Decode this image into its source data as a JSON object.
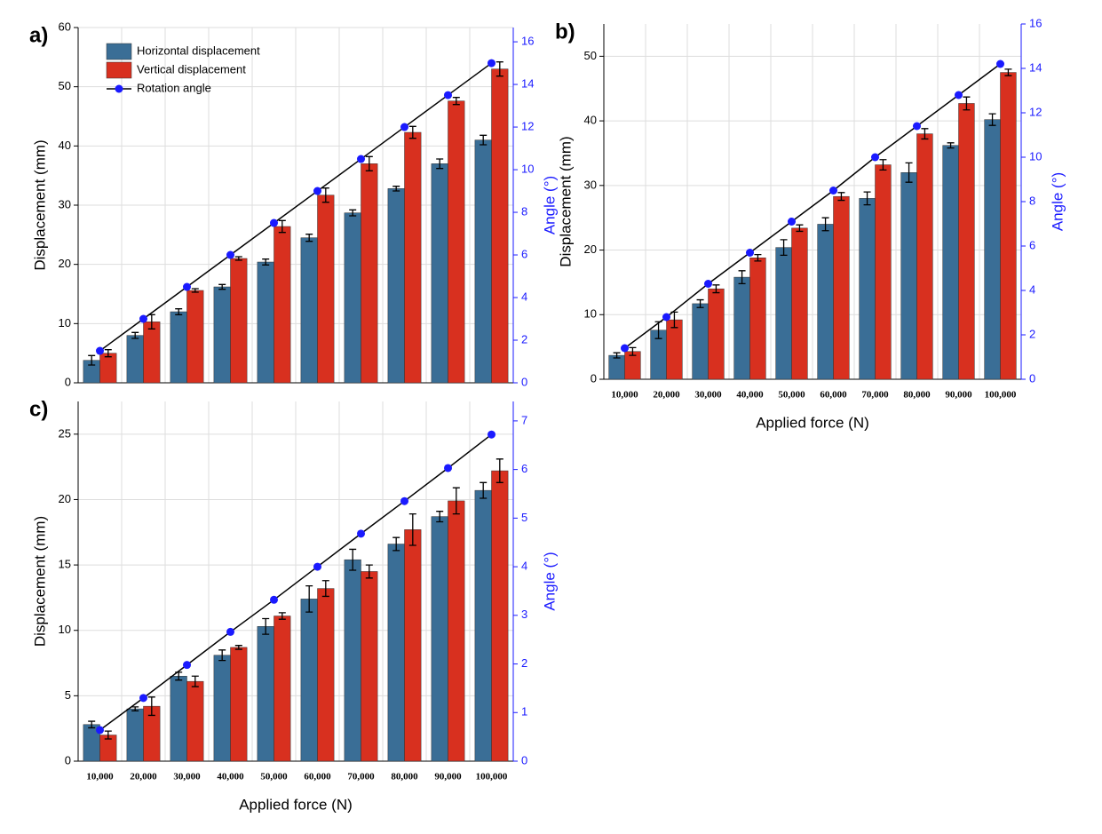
{
  "chart_data": [
    {
      "type": "bar",
      "label": "a)",
      "y_label": "Displacement (mm)",
      "y2_label": "Angle (°)",
      "categories": [
        null,
        null,
        null,
        null,
        null,
        null,
        null,
        null,
        null,
        null
      ],
      "ylim": [
        0,
        60
      ],
      "yticks": [
        0,
        10,
        20,
        30,
        40,
        50,
        60
      ],
      "y2lim": [
        0,
        16.67
      ],
      "y2ticks": [
        0,
        2,
        4,
        6,
        8,
        10,
        12,
        14,
        16
      ],
      "grid": true,
      "legend": "upper left",
      "series": [
        {
          "name": "Horizontal displacement",
          "color": "#3a6e96",
          "values": [
            3.8,
            8.0,
            12.0,
            16.2,
            20.4,
            24.5,
            28.7,
            32.8,
            37.0,
            41.0
          ],
          "errors": [
            0.8,
            0.5,
            0.5,
            0.4,
            0.5,
            0.6,
            0.5,
            0.4,
            0.8,
            0.8
          ]
        },
        {
          "name": "Vertical displacement",
          "color": "#d8301f",
          "values": [
            5.0,
            10.3,
            15.6,
            21.0,
            26.4,
            31.7,
            37.0,
            42.3,
            47.6,
            53.0
          ],
          "errors": [
            0.6,
            1.2,
            0.3,
            0.3,
            1.0,
            1.2,
            1.2,
            1.0,
            0.6,
            1.2
          ]
        },
        {
          "name": "Rotation angle",
          "type": "line",
          "axis": "y2",
          "color": "#1a1aff",
          "values": [
            1.5,
            3.0,
            4.5,
            6.0,
            7.5,
            9.0,
            10.5,
            12.0,
            13.5,
            15.0
          ]
        }
      ]
    },
    {
      "type": "bar",
      "label": "b)",
      "y_label": "Displacement (mm)",
      "y2_label": "Angle (°)",
      "x_label": "Applied force (N)",
      "categories": [
        "10,000",
        "20,000",
        "30,000",
        "40,000",
        "50,000",
        "60,000",
        "70,000",
        "80,000",
        "90,000",
        "100,000"
      ],
      "ylim": [
        0,
        55
      ],
      "yticks": [
        0,
        10,
        20,
        30,
        40,
        50
      ],
      "y2lim": [
        0,
        16
      ],
      "y2ticks": [
        0,
        2,
        4,
        6,
        8,
        10,
        12,
        14,
        16
      ],
      "grid": true,
      "legend": false,
      "series": [
        {
          "color": "#3a6e96",
          "values": [
            3.7,
            7.6,
            11.7,
            15.8,
            20.4,
            24.0,
            28.0,
            32.0,
            36.2,
            40.2
          ],
          "errors": [
            0.4,
            1.3,
            0.6,
            1.0,
            1.2,
            1.0,
            1.0,
            1.5,
            0.4,
            0.9
          ]
        },
        {
          "color": "#d8301f",
          "values": [
            4.3,
            9.2,
            14.0,
            18.8,
            23.4,
            28.3,
            33.2,
            38.0,
            42.7,
            47.5
          ],
          "errors": [
            0.6,
            1.2,
            0.6,
            0.5,
            0.5,
            0.6,
            0.8,
            0.8,
            1.0,
            0.5
          ]
        },
        {
          "type": "line",
          "axis": "y2",
          "color": "#1a1aff",
          "values": [
            1.4,
            2.8,
            4.3,
            5.7,
            7.1,
            8.5,
            10.0,
            11.4,
            12.8,
            14.2
          ]
        }
      ]
    },
    {
      "type": "bar",
      "label": "c)",
      "y_label": "Displacement (mm)",
      "y2_label": "Angle (°)",
      "x_label": "Applied force (N)",
      "categories": [
        "10,000",
        "20,000",
        "30,000",
        "40,000",
        "50,000",
        "60,000",
        "70,000",
        "80,000",
        "90,000",
        "100,000"
      ],
      "ylim": [
        0,
        27.5
      ],
      "yticks": [
        0,
        5,
        10,
        15,
        20,
        25
      ],
      "y2lim": [
        0,
        7.4
      ],
      "y2ticks": [
        0,
        1,
        2,
        3,
        4,
        5,
        6,
        7
      ],
      "grid": true,
      "legend": false,
      "series": [
        {
          "color": "#3a6e96",
          "values": [
            2.8,
            4.0,
            6.5,
            8.1,
            10.3,
            12.4,
            15.4,
            16.6,
            18.7,
            20.7
          ],
          "errors": [
            0.25,
            0.15,
            0.3,
            0.4,
            0.6,
            1.0,
            0.8,
            0.5,
            0.4,
            0.6
          ]
        },
        {
          "color": "#d8301f",
          "values": [
            2.0,
            4.2,
            6.1,
            8.7,
            11.1,
            13.2,
            14.5,
            17.7,
            19.9,
            22.2
          ],
          "errors": [
            0.3,
            0.7,
            0.4,
            0.15,
            0.25,
            0.6,
            0.5,
            1.2,
            1.0,
            0.9
          ]
        },
        {
          "type": "line",
          "axis": "y2",
          "color": "#1a1aff",
          "values": [
            0.64,
            1.3,
            1.98,
            2.66,
            3.32,
            4.0,
            4.68,
            5.35,
            6.03,
            6.72
          ]
        }
      ]
    }
  ]
}
